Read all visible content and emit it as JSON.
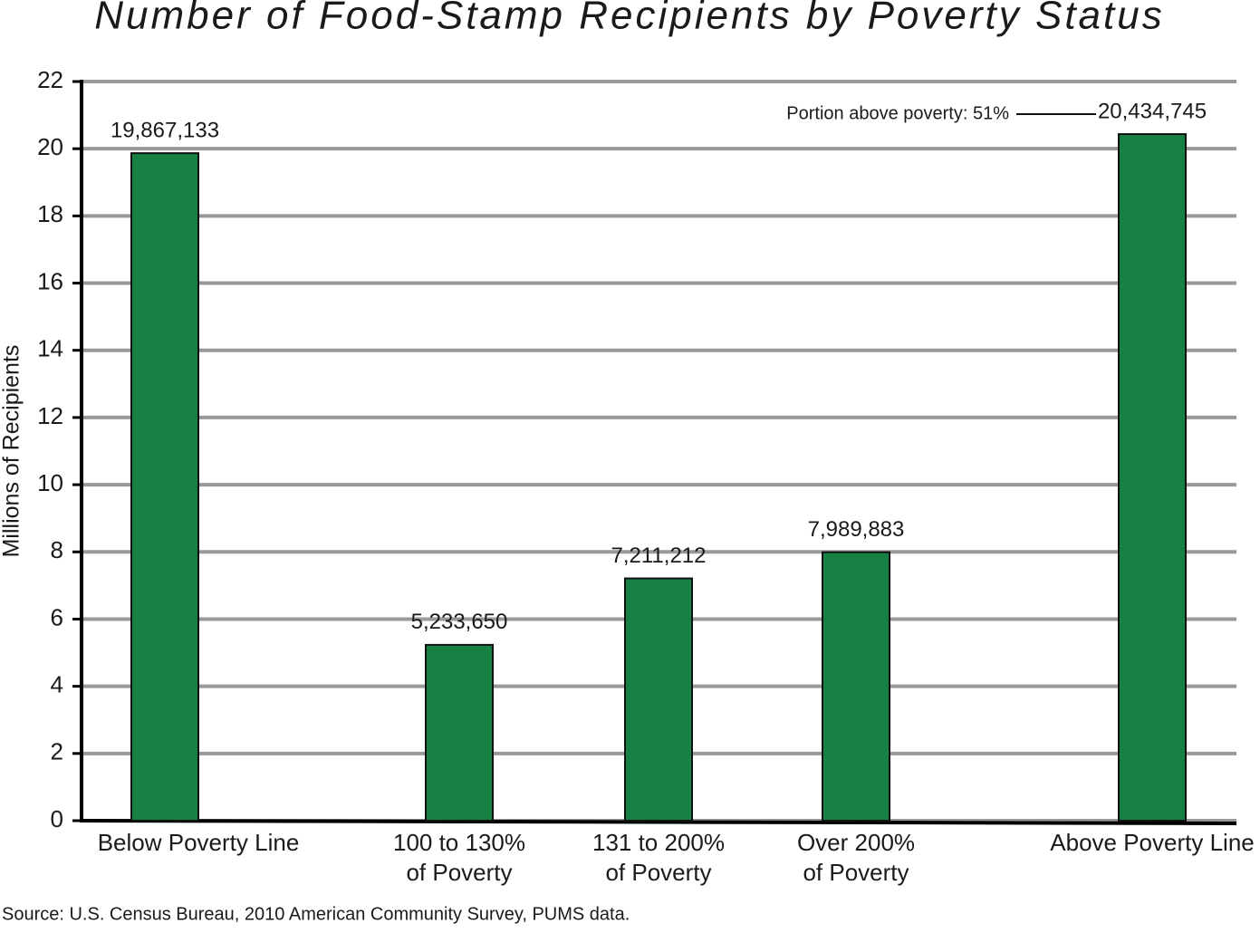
{
  "chart_data": {
    "type": "bar",
    "title": "Number of Food-Stamp Recipients by Poverty Status",
    "y_label": "Millions of Recipients",
    "source": "Source: U.S. Census Bureau, 2010 American Community Survey, PUMS data.",
    "annotation": "Portion above poverty: 51%",
    "categories": [
      [
        "Below Poverty Line"
      ],
      [
        "100 to 130%",
        "of Poverty"
      ],
      [
        "131 to 200%",
        "of Poverty"
      ],
      [
        "Over 200%",
        "of Poverty"
      ],
      [
        "Above Poverty Line"
      ]
    ],
    "values": [
      19.867133,
      5.23365,
      7.211212,
      7.989883,
      20.434745
    ],
    "value_labels": [
      "19,867,133",
      "5,233,650",
      "7,211,212",
      "7,989,883",
      "20,434,745"
    ],
    "color": "#168142",
    "ylim": [
      0,
      22
    ],
    "yticks": [
      0,
      2,
      4,
      6,
      8,
      10,
      12,
      14,
      16,
      18,
      20,
      22
    ],
    "grid": true
  }
}
